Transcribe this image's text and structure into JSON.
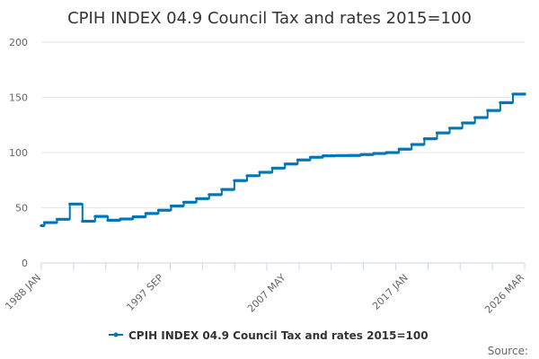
{
  "chart_data": {
    "type": "line",
    "title": "CPIH INDEX 04.9 Council Tax and rates 2015=100",
    "xlabel": "",
    "ylabel": "",
    "ylim": [
      0,
      200
    ],
    "yticks": [
      0,
      50,
      100,
      150,
      200
    ],
    "xlim": [
      1988.0,
      2026.17
    ],
    "xticks": [
      {
        "label": "1988 JAN",
        "value": 1988.0
      },
      {
        "label": "1997 SEP",
        "value": 1997.67
      },
      {
        "label": "2007 MAY",
        "value": 2007.33
      },
      {
        "label": "2017 JAN",
        "value": 2017.0
      },
      {
        "label": "2026 MAR",
        "value": 2026.17
      }
    ],
    "legend": "bottom-center",
    "series": [
      {
        "name": "CPIH INDEX 04.9 Council Tax and rates 2015=100",
        "color": "#0076b6",
        "points": [
          [
            1988.0,
            33.8
          ],
          [
            1988.25,
            36.6
          ],
          [
            1989.25,
            39.6
          ],
          [
            1990.25,
            53.4
          ],
          [
            1991.25,
            37.8
          ],
          [
            1992.25,
            42.2
          ],
          [
            1993.25,
            38.7
          ],
          [
            1994.25,
            39.8
          ],
          [
            1995.25,
            41.8
          ],
          [
            1996.25,
            44.8
          ],
          [
            1997.25,
            47.8
          ],
          [
            1998.25,
            51.6
          ],
          [
            1999.25,
            55.0
          ],
          [
            2000.25,
            58.3
          ],
          [
            2001.25,
            61.9
          ],
          [
            2002.25,
            66.6
          ],
          [
            2003.25,
            74.6
          ],
          [
            2004.25,
            79.0
          ],
          [
            2005.25,
            82.1
          ],
          [
            2006.25,
            85.9
          ],
          [
            2007.25,
            89.7
          ],
          [
            2008.25,
            93.3
          ],
          [
            2009.25,
            95.8
          ],
          [
            2010.25,
            97.1
          ],
          [
            2011.25,
            97.3
          ],
          [
            2012.25,
            97.4
          ],
          [
            2013.25,
            98.2
          ],
          [
            2014.25,
            99.2
          ],
          [
            2015.25,
            100.0
          ],
          [
            2016.25,
            103.1
          ],
          [
            2017.25,
            107.3
          ],
          [
            2018.25,
            112.5
          ],
          [
            2019.25,
            117.8
          ],
          [
            2020.25,
            122.1
          ],
          [
            2021.25,
            126.8
          ],
          [
            2022.25,
            131.7
          ],
          [
            2023.25,
            138.1
          ],
          [
            2024.25,
            145.2
          ],
          [
            2025.25,
            152.9
          ],
          [
            2026.17,
            152.9
          ]
        ]
      }
    ]
  },
  "source_label": "Source:"
}
